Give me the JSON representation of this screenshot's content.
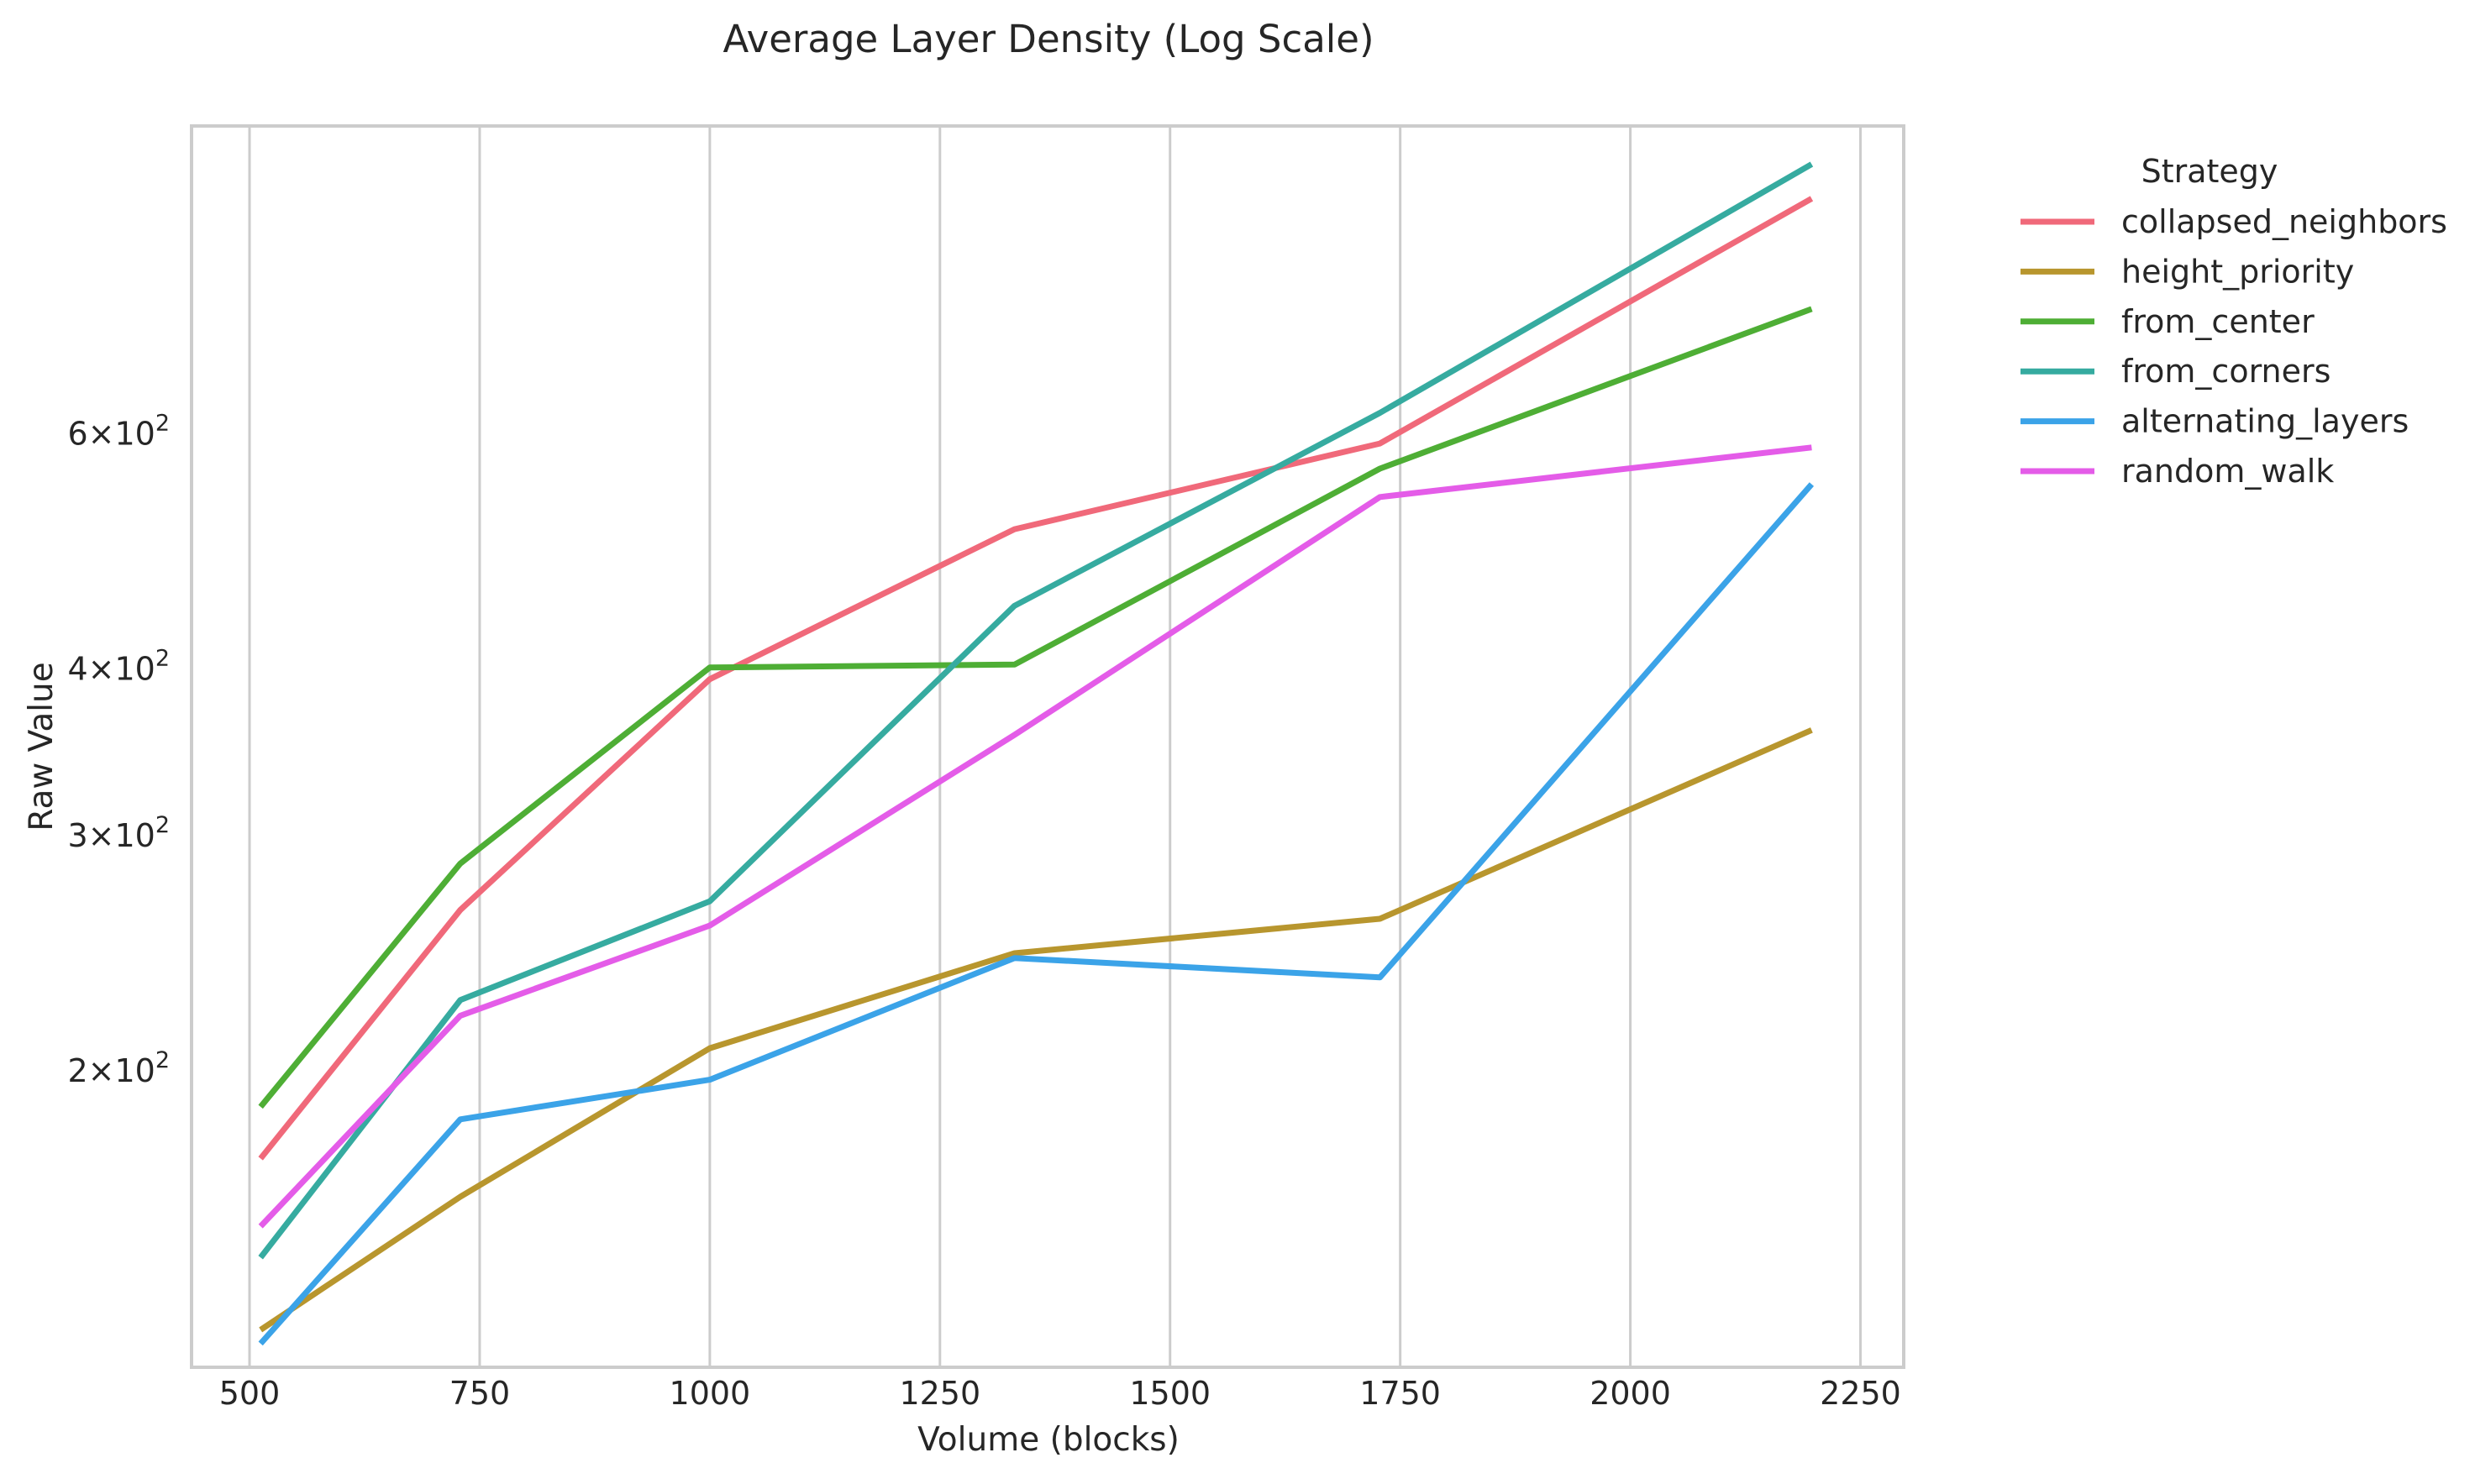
{
  "chart_data": {
    "type": "line",
    "title": "Average Layer Density (Log Scale)",
    "xlabel": "Volume (blocks)",
    "ylabel": "Raw Value",
    "yscale": "log",
    "xlim": [
      437,
      2297
    ],
    "ylim": [
      120,
      1020
    ],
    "x_ticks": [
      {
        "value": 500,
        "label": "500"
      },
      {
        "value": 750,
        "label": "750"
      },
      {
        "value": 1000,
        "label": "1000"
      },
      {
        "value": 1250,
        "label": "1250"
      },
      {
        "value": 1500,
        "label": "1500"
      },
      {
        "value": 1750,
        "label": "1750"
      },
      {
        "value": 2000,
        "label": "2000"
      },
      {
        "value": 2250,
        "label": "2250"
      }
    ],
    "y_ticks": [
      {
        "value": 200,
        "mantissa": "2",
        "base": "10",
        "exp": "2"
      },
      {
        "value": 300,
        "mantissa": "3",
        "base": "10",
        "exp": "2"
      },
      {
        "value": 400,
        "mantissa": "4",
        "base": "10",
        "exp": "2"
      },
      {
        "value": 600,
        "mantissa": "6",
        "base": "10",
        "exp": "2"
      }
    ],
    "grid": "vertical",
    "legend": {
      "title": "Strategy",
      "placement": "outside-right-top"
    },
    "x": [
      512,
      729,
      1000,
      1331,
      1728,
      2197
    ],
    "series": [
      {
        "name": "collapsed_neighbors",
        "color": "#f0697a",
        "values": [
          172,
          264,
          393,
          509,
          590,
          900
        ]
      },
      {
        "name": "height_priority",
        "color": "#b8962e",
        "values": [
          128,
          161,
          208,
          245,
          260,
          360
        ]
      },
      {
        "name": "from_center",
        "color": "#4eae35",
        "values": [
          188,
          286,
          401,
          403,
          565,
          744
        ]
      },
      {
        "name": "from_corners",
        "color": "#36aba0",
        "values": [
          145,
          226,
          268,
          446,
          622,
          955
        ]
      },
      {
        "name": "alternating_layers",
        "color": "#3ba3e8",
        "values": [
          125,
          184,
          197,
          243,
          235,
          550
        ]
      },
      {
        "name": "random_walk",
        "color": "#e45ce8",
        "values": [
          153,
          220,
          257,
          357,
          538,
          586
        ]
      }
    ]
  }
}
